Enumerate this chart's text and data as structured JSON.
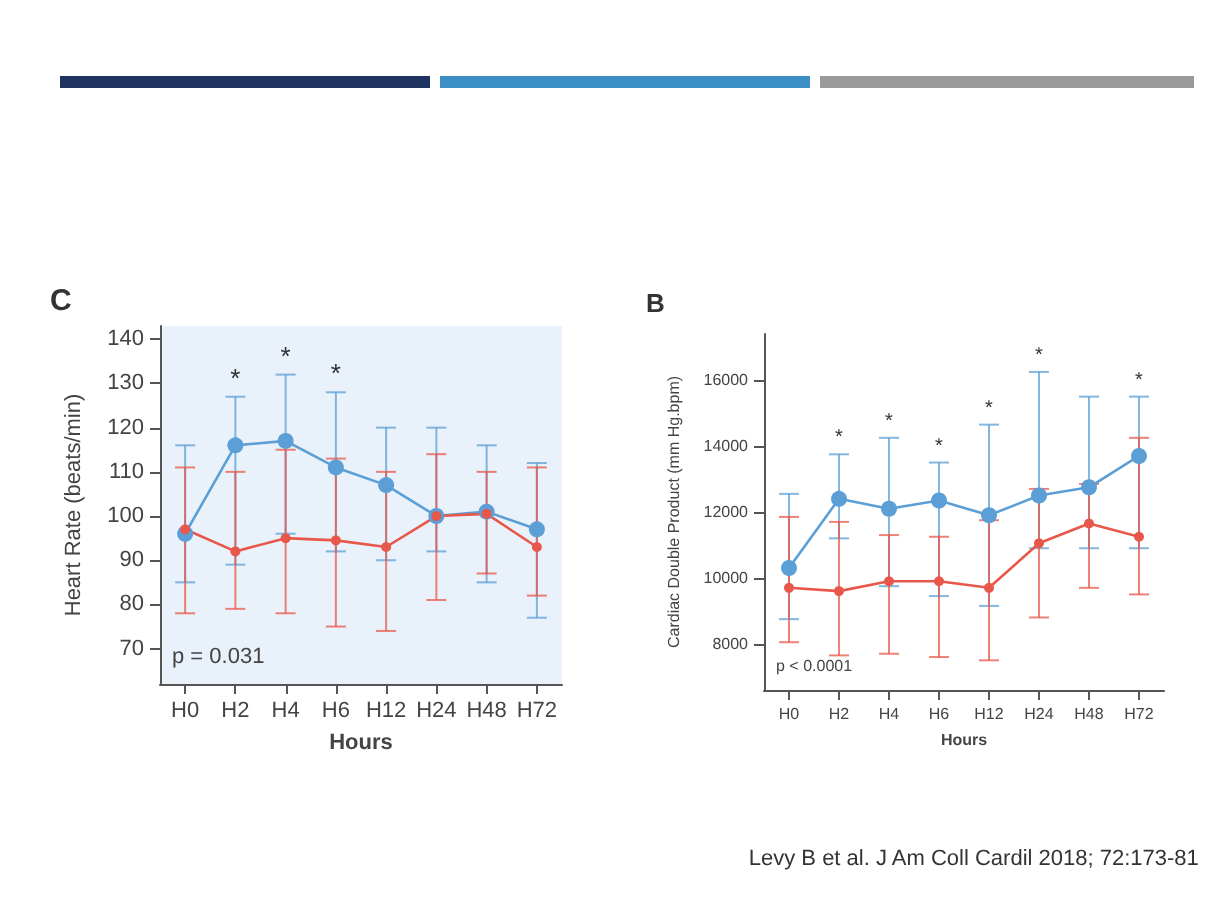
{
  "chart_data": [
    {
      "type": "line",
      "title": "C",
      "xlabel": "Hours",
      "ylabel": "Heart Rate (beats/min)",
      "categories": [
        "H0",
        "H2",
        "H4",
        "H6",
        "H12",
        "H24",
        "H48",
        "H72"
      ],
      "series": [
        {
          "color": "#5b9fd6",
          "values": [
            96,
            116,
            117,
            111,
            107,
            100,
            101,
            97
          ],
          "errors": [
            [
              85,
              116
            ],
            [
              89,
              127
            ],
            [
              96,
              132
            ],
            [
              92,
              128
            ],
            [
              90,
              120
            ],
            [
              92,
              120
            ],
            [
              85,
              116
            ],
            [
              77,
              112
            ]
          ]
        },
        {
          "color": "#e8584a",
          "values": [
            97,
            92,
            95,
            94.5,
            93,
            100,
            100.5,
            93
          ],
          "errors": [
            [
              78,
              111
            ],
            [
              79,
              110
            ],
            [
              78,
              115
            ],
            [
              75,
              113
            ],
            [
              74,
              110
            ],
            [
              81,
              114
            ],
            [
              87,
              110
            ],
            [
              82,
              111
            ]
          ]
        }
      ],
      "ylim": [
        62,
        143
      ],
      "yticks": [
        70,
        80,
        90,
        100,
        110,
        120,
        130,
        140
      ],
      "grid": false,
      "marker": "circle",
      "line_style": "solid",
      "annotations": [
        "p = 0.031",
        {
          "text": "*",
          "x": "H2",
          "y": 127
        },
        {
          "text": "*",
          "x": "H4",
          "y": 132
        },
        {
          "text": "*",
          "x": "H6",
          "y": 128
        }
      ]
    },
    {
      "type": "line",
      "title": "B",
      "xlabel": "Hours",
      "ylabel": "Cardiac Double Product (mm Hg.bpm)",
      "categories": [
        "H0",
        "H2",
        "H4",
        "H6",
        "H12",
        "H24",
        "H48",
        "H72"
      ],
      "series": [
        {
          "color": "#5b9fd6",
          "values": [
            10300,
            12400,
            12100,
            12350,
            11900,
            12500,
            12750,
            13700
          ],
          "errors": [
            [
              8750,
              12550
            ],
            [
              11200,
              13750
            ],
            [
              9750,
              14250
            ],
            [
              9450,
              13500
            ],
            [
              9150,
              14650
            ],
            [
              10900,
              16250
            ],
            [
              10900,
              15500
            ],
            [
              10900,
              15500
            ]
          ]
        },
        {
          "color": "#e8584a",
          "values": [
            9700,
            9600,
            9900,
            9900,
            9700,
            11050,
            11650,
            11250
          ],
          "errors": [
            [
              8050,
              11850
            ],
            [
              7650,
              11700
            ],
            [
              7700,
              11300
            ],
            [
              7600,
              11250
            ],
            [
              7500,
              11750
            ],
            [
              8800,
              12700
            ],
            [
              9700,
              12850
            ],
            [
              9500,
              14250
            ]
          ]
        }
      ],
      "ylim": [
        6600,
        17400
      ],
      "yticks": [
        8000,
        10000,
        12000,
        14000,
        16000
      ],
      "grid": false,
      "marker": "circle",
      "line_style": "solid",
      "annotations": [
        "p < 0.0001",
        "Levy B et al. J Am Coll Cardil 2018; 72:173-81",
        {
          "text": "*",
          "x": "H2",
          "y": 13750
        },
        {
          "text": "*",
          "x": "H4",
          "y": 14250
        },
        {
          "text": "*",
          "x": "H6",
          "y": 13500
        },
        {
          "text": "*",
          "x": "H12",
          "y": 14650
        },
        {
          "text": "*",
          "x": "H24",
          "y": 16250
        },
        {
          "text": "*",
          "x": "H72",
          "y": 15500
        }
      ]
    }
  ]
}
